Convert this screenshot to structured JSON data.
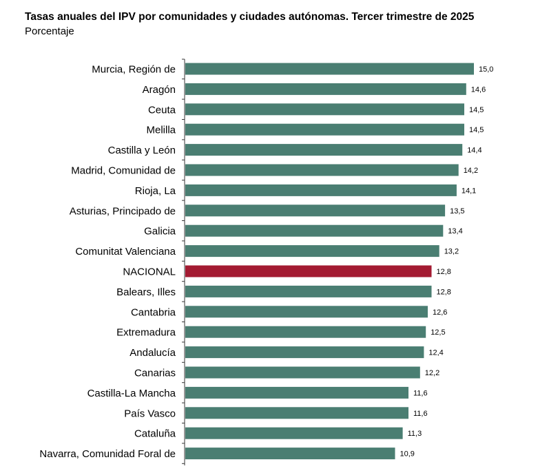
{
  "chart_data": {
    "type": "bar",
    "orientation": "horizontal",
    "title": "Tasas anuales del IPV por comunidades y ciudades autónomas. Tercer trimestre de 2025",
    "subtitle": "Porcentaje",
    "xlabel": "",
    "ylabel": "",
    "xlim": [
      0,
      15.0
    ],
    "grid": false,
    "legend": "none",
    "bar_color": "#4a7e72",
    "highlight_color": "#a31b32",
    "highlight_category": "NACIONAL",
    "categories": [
      "Murcia, Región de",
      "Aragón",
      "Ceuta",
      "Melilla",
      "Castilla y León",
      "Madrid, Comunidad de",
      "Rioja, La",
      "Asturias, Principado de",
      "Galicia",
      "Comunitat Valenciana",
      "NACIONAL",
      "Balears, Illes",
      "Cantabria",
      "Extremadura",
      "Andalucía",
      "Canarias",
      "Castilla-La Mancha",
      "País Vasco",
      "Cataluña",
      "Navarra, Comunidad Foral de"
    ],
    "values": [
      15.0,
      14.6,
      14.5,
      14.5,
      14.4,
      14.2,
      14.1,
      13.5,
      13.4,
      13.2,
      12.8,
      12.8,
      12.6,
      12.5,
      12.4,
      12.2,
      11.6,
      11.6,
      11.3,
      10.9
    ],
    "value_labels": [
      "15,0",
      "14,6",
      "14,5",
      "14,5",
      "14,4",
      "14,2",
      "14,1",
      "13,5",
      "13,4",
      "13,2",
      "12,8",
      "12,8",
      "12,6",
      "12,5",
      "12,4",
      "12,2",
      "11,6",
      "11,6",
      "11,3",
      "10,9"
    ]
  }
}
